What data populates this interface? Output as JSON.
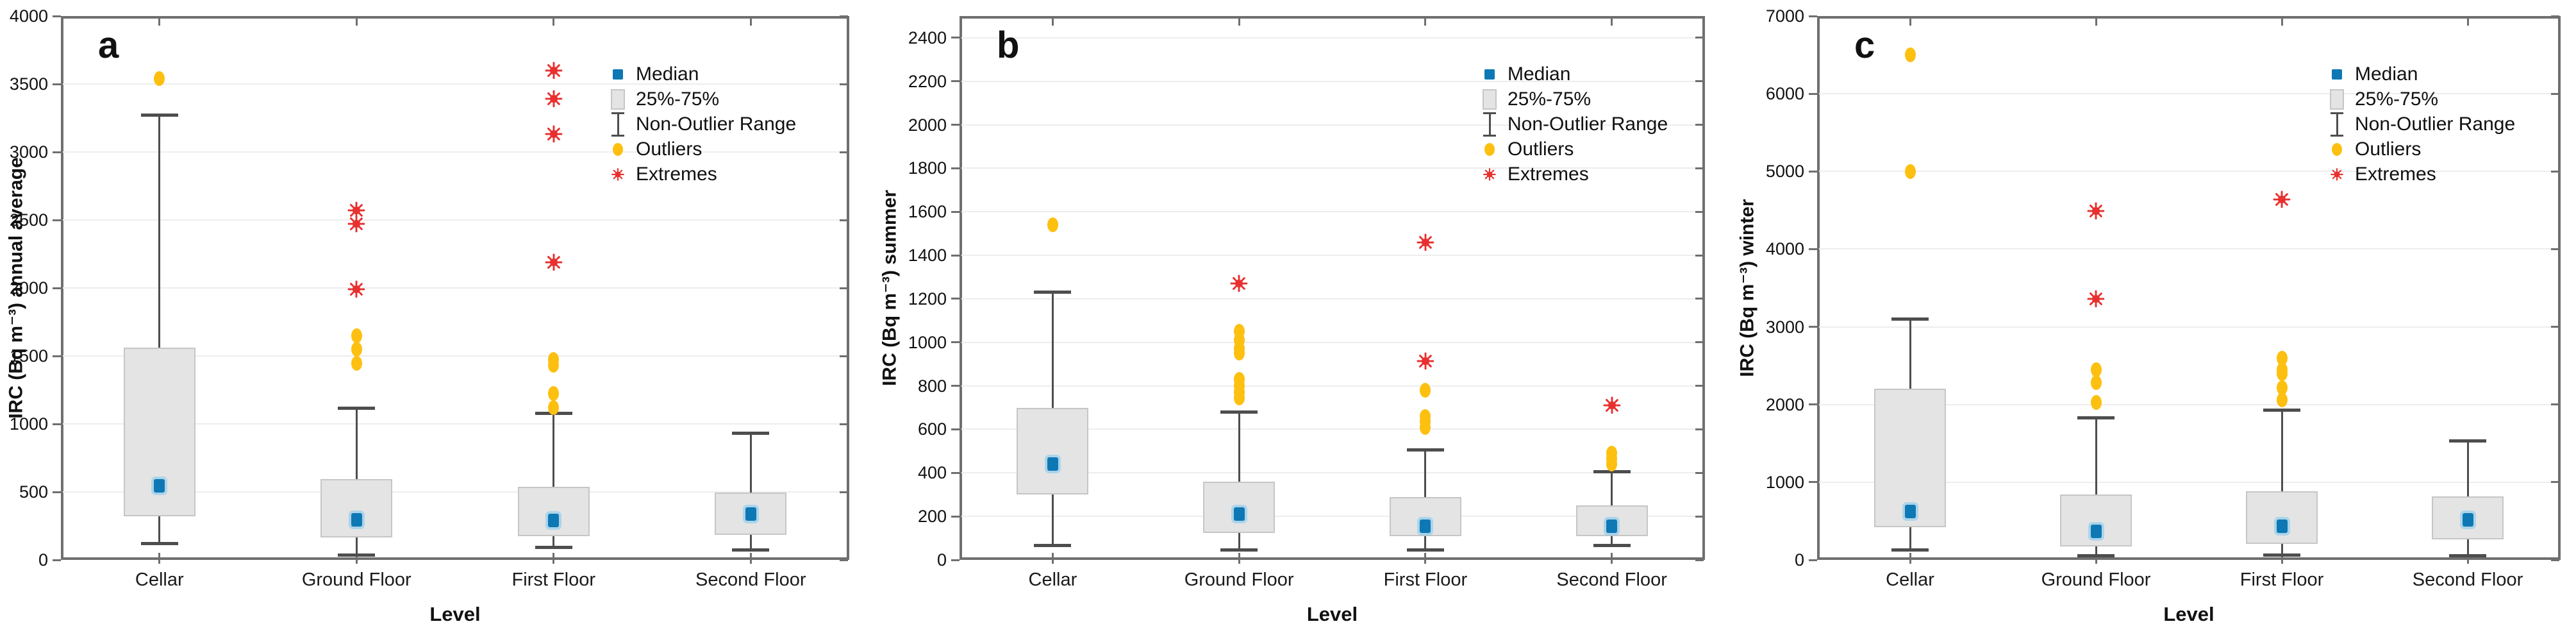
{
  "figure": {
    "categories": [
      "Cellar",
      "Ground Floor",
      "First Floor",
      "Second Floor"
    ],
    "xlabel": "Level",
    "legend": {
      "median": "Median",
      "box": "25%-75%",
      "whisker": "Non-Outlier Range",
      "outliers": "Outliers",
      "extremes": "Extremes"
    },
    "colors": {
      "median_blue": "#0e78b4",
      "median_halo": "#7dc6ee",
      "box_fill": "#e4e4e4",
      "box_border": "#c6c6c6",
      "whisker_grey": "#4d4d4d",
      "outlier_orange": "#fdc010",
      "extreme_red": "#e8302f",
      "axis_grey": "#6f6f6f",
      "gridline": "#ededed",
      "text": "#111111"
    }
  },
  "chart_data": [
    {
      "type": "box",
      "panel": "a",
      "ylabel": "IRC (Bq m⁻³) annual average",
      "xlabel": "Level",
      "categories": [
        "Cellar",
        "Ground Floor",
        "First Floor",
        "Second Floor"
      ],
      "ylim": [
        0,
        4000
      ],
      "ytick_step": 500,
      "ytick_max": 4000,
      "grid": true,
      "legend_position": "upper-right",
      "boxes": [
        {
          "category": "Cellar",
          "non_outlier_low": 120,
          "q1": 320,
          "median": 545,
          "q3": 1560,
          "non_outlier_high": 3270,
          "outliers": [
            3540
          ],
          "extremes": []
        },
        {
          "category": "Ground Floor",
          "non_outlier_low": 35,
          "q1": 165,
          "median": 295,
          "q3": 595,
          "non_outlier_high": 1115,
          "outliers": [
            1650,
            1550,
            1445
          ],
          "extremes": [
            2570,
            2470,
            1990
          ]
        },
        {
          "category": "First Floor",
          "non_outlier_low": 90,
          "q1": 175,
          "median": 290,
          "q3": 540,
          "non_outlier_high": 1080,
          "outliers": [
            1475,
            1430,
            1225,
            1120
          ],
          "extremes": [
            3600,
            3390,
            3130,
            2190
          ]
        },
        {
          "category": "Second Floor",
          "non_outlier_low": 75,
          "q1": 185,
          "median": 335,
          "q3": 495,
          "non_outlier_high": 930,
          "outliers": [],
          "extremes": []
        }
      ]
    },
    {
      "type": "box",
      "panel": "b",
      "ylabel": "IRC (Bq m⁻³) summer",
      "xlabel": "Level",
      "categories": [
        "Cellar",
        "Ground Floor",
        "First Floor",
        "Second Floor"
      ],
      "ylim": [
        0,
        2500
      ],
      "ytick_step": 200,
      "ytick_max": 2400,
      "grid": true,
      "legend_position": "upper-right",
      "boxes": [
        {
          "category": "Cellar",
          "non_outlier_low": 65,
          "q1": 300,
          "median": 440,
          "q3": 700,
          "non_outlier_high": 1230,
          "outliers": [
            1540
          ],
          "extremes": []
        },
        {
          "category": "Ground Floor",
          "non_outlier_low": 45,
          "q1": 125,
          "median": 210,
          "q3": 360,
          "non_outlier_high": 680,
          "outliers": [
            1050,
            1010,
            970,
            950,
            830,
            800,
            770,
            745
          ],
          "extremes": [
            1270
          ]
        },
        {
          "category": "First Floor",
          "non_outlier_low": 45,
          "q1": 110,
          "median": 155,
          "q3": 290,
          "non_outlier_high": 505,
          "outliers": [
            780,
            660,
            635,
            610
          ],
          "extremes": [
            1460,
            915
          ]
        },
        {
          "category": "Second Floor",
          "non_outlier_low": 65,
          "q1": 110,
          "median": 155,
          "q3": 250,
          "non_outlier_high": 405,
          "outliers": [
            490,
            465,
            440
          ],
          "extremes": [
            710
          ]
        }
      ]
    },
    {
      "type": "box",
      "panel": "c",
      "ylabel": "IRC (Bq m⁻³) winter",
      "xlabel": "Level",
      "categories": [
        "Cellar",
        "Ground Floor",
        "First Floor",
        "Second Floor"
      ],
      "ylim": [
        0,
        7000
      ],
      "ytick_step": 1000,
      "ytick_max": 7000,
      "grid": true,
      "legend_position": "upper-right",
      "boxes": [
        {
          "category": "Cellar",
          "non_outlier_low": 130,
          "q1": 420,
          "median": 620,
          "q3": 2200,
          "non_outlier_high": 3100,
          "outliers": [
            6500,
            5000
          ],
          "extremes": []
        },
        {
          "category": "Ground Floor",
          "non_outlier_low": 50,
          "q1": 175,
          "median": 370,
          "q3": 840,
          "non_outlier_high": 1830,
          "outliers": [
            2450,
            2280,
            2030
          ],
          "extremes": [
            4490,
            3360
          ]
        },
        {
          "category": "First Floor",
          "non_outlier_low": 60,
          "q1": 205,
          "median": 430,
          "q3": 885,
          "non_outlier_high": 1930,
          "outliers": [
            2600,
            2450,
            2400,
            2220,
            2060
          ],
          "extremes": [
            4640
          ]
        },
        {
          "category": "Second Floor",
          "non_outlier_low": 50,
          "q1": 265,
          "median": 520,
          "q3": 820,
          "non_outlier_high": 1530,
          "outliers": [],
          "extremes": []
        }
      ]
    }
  ]
}
